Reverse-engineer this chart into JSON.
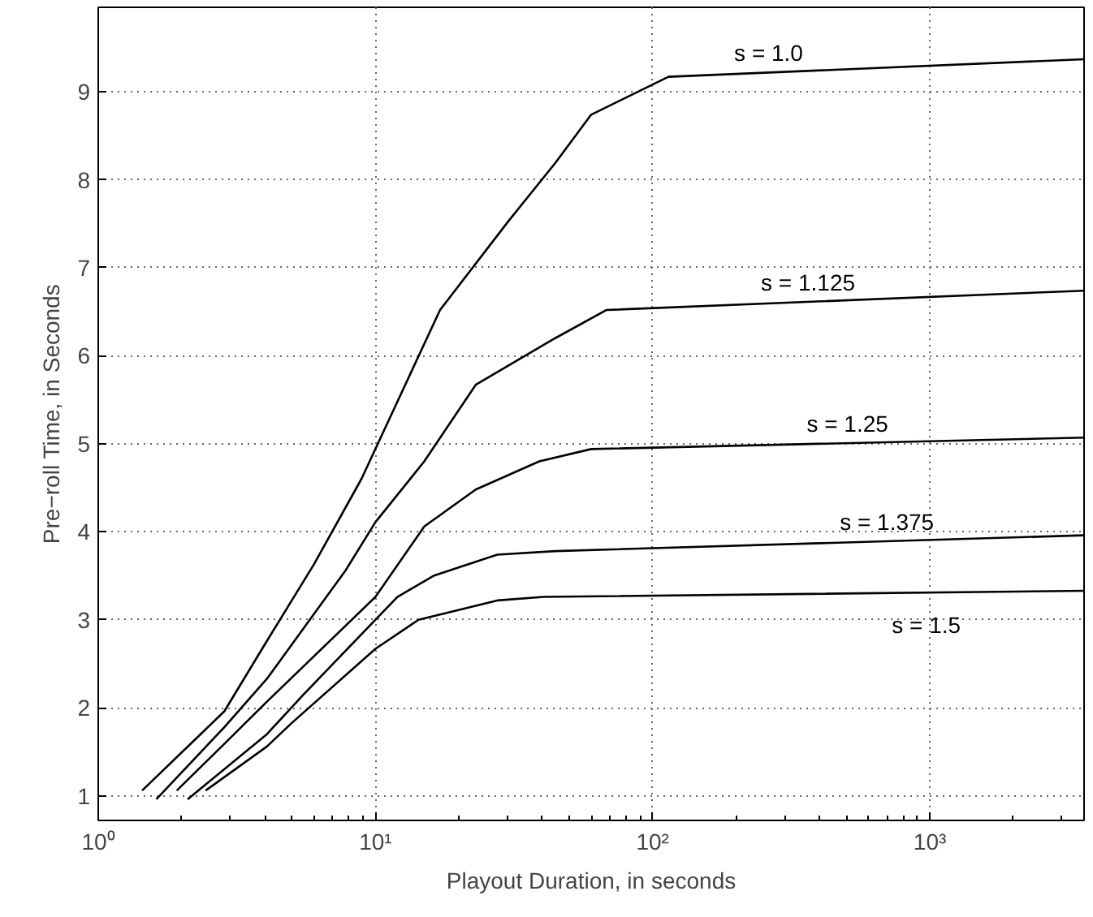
{
  "chart_data": {
    "type": "line",
    "xlabel": "Playout Duration, in seconds",
    "ylabel": "Pre−roll Time, in Seconds",
    "log": "x",
    "grid": true,
    "marker": "none",
    "line_style": "solid",
    "xlim": [
      1,
      3600
    ],
    "ylim": [
      0.72,
      9.96
    ],
    "xticks": [
      {
        "value": 1,
        "label": "10⁰"
      },
      {
        "value": 10,
        "label": "10¹"
      },
      {
        "value": 100,
        "label": "10²"
      },
      {
        "value": 1000,
        "label": "10³"
      }
    ],
    "yticks": [
      1,
      2,
      3,
      4,
      5,
      6,
      7,
      8,
      9
    ],
    "series": [
      {
        "name": "s = 1.0",
        "color": "#000000",
        "x": [
          1.44,
          2.85,
          4.06,
          6.0,
          8.9,
          17.1,
          30,
          44.5,
          60,
          114,
          3600
        ],
        "values": [
          1.06,
          1.96,
          2.76,
          3.63,
          4.6,
          6.52,
          7.52,
          8.19,
          8.74,
          9.17,
          9.37
        ]
      },
      {
        "name": "s = 1.125",
        "color": "#000000",
        "x": [
          1.62,
          2.85,
          4.06,
          7.8,
          10,
          15,
          23,
          44.5,
          68,
          3600
        ],
        "values": [
          0.96,
          1.78,
          2.33,
          3.56,
          4.11,
          4.8,
          5.67,
          6.2,
          6.52,
          6.74
        ]
      },
      {
        "name": "s = 1.25",
        "color": "#000000",
        "x": [
          1.92,
          2.85,
          4.06,
          10,
          15,
          23,
          39,
          60,
          3600
        ],
        "values": [
          1.06,
          1.59,
          2.07,
          3.26,
          4.06,
          4.48,
          4.8,
          4.94,
          5.07
        ]
      },
      {
        "name": "s = 1.375",
        "color": "#000000",
        "x": [
          2.1,
          4.06,
          5.5,
          12,
          16.2,
          27.5,
          44.5,
          3600
        ],
        "values": [
          0.96,
          1.7,
          2.15,
          3.26,
          3.5,
          3.74,
          3.78,
          3.96
        ]
      },
      {
        "name": "s = 1.5",
        "color": "#000000",
        "x": [
          2.44,
          4.06,
          5.0,
          10,
          14.3,
          27.5,
          40.5,
          3600
        ],
        "values": [
          1.06,
          1.56,
          1.83,
          2.67,
          3.0,
          3.22,
          3.26,
          3.33
        ]
      }
    ]
  }
}
